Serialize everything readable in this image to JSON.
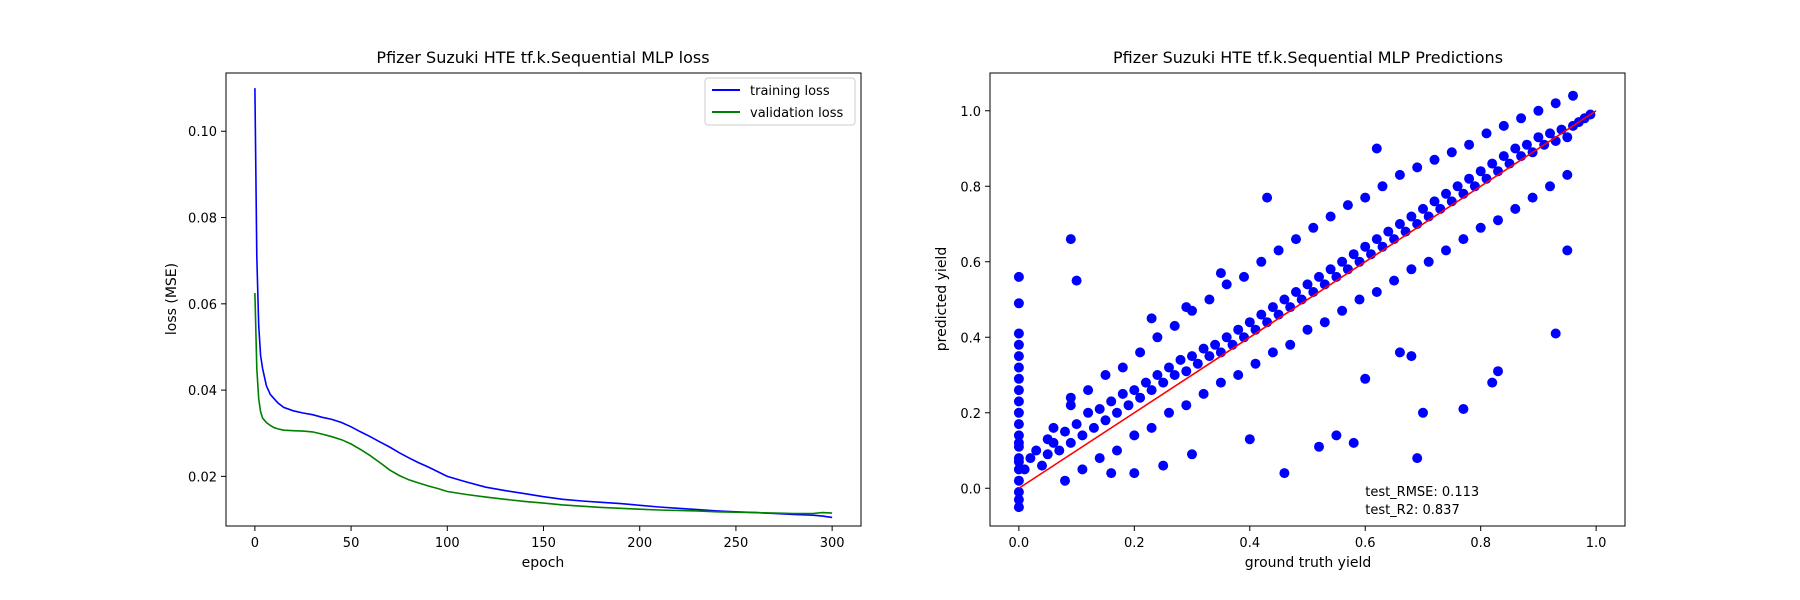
{
  "colors": {
    "training": "#0000ff",
    "validation": "#008000",
    "scatter": "#0000ff",
    "diagonal": "#ff0000"
  },
  "chart_data": [
    {
      "type": "line",
      "title": "Pfizer Suzuki HTE tf.k.Sequential MLP loss",
      "xlabel": "epoch",
      "ylabel": "loss (MSE)",
      "xlim": [
        -15,
        315
      ],
      "ylim": [
        0.0085,
        0.1135
      ],
      "xticks": [
        0,
        50,
        100,
        150,
        200,
        250,
        300
      ],
      "xtick_labels": [
        "0",
        "50",
        "100",
        "150",
        "200",
        "250",
        "300"
      ],
      "yticks": [
        0.02,
        0.04,
        0.06,
        0.08,
        0.1
      ],
      "ytick_labels": [
        "0.02",
        "0.04",
        "0.06",
        "0.08",
        "0.10"
      ],
      "legend_position": "top-right",
      "series": [
        {
          "name": "training loss",
          "x": [
            0,
            1,
            2,
            3,
            4,
            5,
            6,
            8,
            10,
            12,
            15,
            20,
            25,
            30,
            35,
            40,
            45,
            50,
            55,
            60,
            65,
            70,
            75,
            80,
            85,
            90,
            95,
            100,
            110,
            120,
            130,
            140,
            150,
            160,
            170,
            180,
            190,
            200,
            210,
            220,
            230,
            240,
            250,
            260,
            270,
            280,
            290,
            295,
            300
          ],
          "y": [
            0.11,
            0.071,
            0.055,
            0.048,
            0.045,
            0.043,
            0.041,
            0.039,
            0.038,
            0.037,
            0.036,
            0.0352,
            0.0347,
            0.0343,
            0.0337,
            0.0332,
            0.0325,
            0.0315,
            0.0303,
            0.0292,
            0.028,
            0.0268,
            0.0255,
            0.0243,
            0.0232,
            0.0222,
            0.0211,
            0.02,
            0.0187,
            0.0175,
            0.0167,
            0.016,
            0.0153,
            0.0147,
            0.0143,
            0.014,
            0.0137,
            0.0133,
            0.0129,
            0.0126,
            0.0123,
            0.012,
            0.0118,
            0.0116,
            0.0114,
            0.0112,
            0.011,
            0.0108,
            0.0105
          ]
        },
        {
          "name": "validation loss",
          "x": [
            0,
            1,
            2,
            3,
            4,
            5,
            6,
            8,
            10,
            12,
            15,
            20,
            25,
            30,
            35,
            40,
            45,
            50,
            55,
            60,
            65,
            70,
            75,
            80,
            85,
            90,
            95,
            100,
            110,
            120,
            130,
            140,
            150,
            160,
            170,
            180,
            190,
            200,
            210,
            220,
            230,
            240,
            250,
            260,
            270,
            280,
            290,
            295,
            300
          ],
          "y": [
            0.0625,
            0.045,
            0.038,
            0.035,
            0.0335,
            0.033,
            0.0325,
            0.0318,
            0.0313,
            0.031,
            0.0307,
            0.0306,
            0.0305,
            0.0303,
            0.0298,
            0.0292,
            0.0285,
            0.0275,
            0.0262,
            0.0248,
            0.0232,
            0.0215,
            0.0202,
            0.0192,
            0.0185,
            0.0178,
            0.0172,
            0.0165,
            0.0158,
            0.0152,
            0.0147,
            0.0142,
            0.0138,
            0.0134,
            0.0131,
            0.0128,
            0.0126,
            0.0124,
            0.0122,
            0.0121,
            0.012,
            0.0118,
            0.0117,
            0.0116,
            0.0115,
            0.0114,
            0.0114,
            0.0116,
            0.0115
          ]
        }
      ]
    },
    {
      "type": "scatter",
      "title": "Pfizer Suzuki HTE tf.k.Sequential MLP Predictions",
      "xlabel": "ground truth yield",
      "ylabel": "predicted yield",
      "xlim": [
        -0.05,
        1.05
      ],
      "ylim": [
        -0.1,
        1.1
      ],
      "xticks": [
        0.0,
        0.2,
        0.4,
        0.6,
        0.8,
        1.0
      ],
      "xtick_labels": [
        "0.0",
        "0.2",
        "0.4",
        "0.6",
        "0.8",
        "1.0"
      ],
      "yticks": [
        0.0,
        0.2,
        0.4,
        0.6,
        0.8,
        1.0
      ],
      "ytick_labels": [
        "0.0",
        "0.2",
        "0.4",
        "0.6",
        "0.8",
        "1.0"
      ],
      "diagonal": [
        [
          0,
          0
        ],
        [
          1,
          1
        ]
      ],
      "annotations": [
        "test_RMSE: 0.113",
        "test_R2: 0.837"
      ],
      "annotation_at": [
        0.6,
        -0.02
      ],
      "series": [
        {
          "x": [
            0.0,
            0.0,
            0.0,
            0.0,
            0.0,
            0.0,
            0.0,
            0.0,
            0.0,
            0.0,
            0.0,
            0.0,
            0.0,
            0.0,
            0.0,
            0.0,
            0.0,
            0.0,
            0.0,
            0.0,
            0.09,
            0.1,
            0.0,
            0.01,
            0.02,
            0.03,
            0.04,
            0.05,
            0.06,
            0.07,
            0.08,
            0.09,
            0.1,
            0.11,
            0.12,
            0.13,
            0.14,
            0.15,
            0.16,
            0.17,
            0.18,
            0.19,
            0.2,
            0.21,
            0.22,
            0.23,
            0.24,
            0.25,
            0.26,
            0.27,
            0.28,
            0.29,
            0.3,
            0.31,
            0.32,
            0.33,
            0.34,
            0.35,
            0.36,
            0.37,
            0.38,
            0.39,
            0.4,
            0.41,
            0.42,
            0.43,
            0.44,
            0.45,
            0.46,
            0.47,
            0.48,
            0.49,
            0.5,
            0.51,
            0.52,
            0.53,
            0.54,
            0.55,
            0.56,
            0.57,
            0.58,
            0.59,
            0.6,
            0.61,
            0.62,
            0.63,
            0.64,
            0.65,
            0.66,
            0.67,
            0.68,
            0.69,
            0.7,
            0.71,
            0.72,
            0.73,
            0.74,
            0.75,
            0.76,
            0.77,
            0.78,
            0.79,
            0.8,
            0.81,
            0.82,
            0.83,
            0.84,
            0.85,
            0.86,
            0.87,
            0.88,
            0.89,
            0.9,
            0.91,
            0.92,
            0.93,
            0.94,
            0.95,
            0.96,
            0.97,
            0.98,
            0.99,
            0.05,
            0.08,
            0.11,
            0.14,
            0.17,
            0.2,
            0.23,
            0.26,
            0.29,
            0.32,
            0.35,
            0.38,
            0.41,
            0.44,
            0.47,
            0.5,
            0.53,
            0.56,
            0.59,
            0.62,
            0.65,
            0.68,
            0.71,
            0.74,
            0.77,
            0.8,
            0.83,
            0.86,
            0.89,
            0.92,
            0.95,
            0.06,
            0.09,
            0.12,
            0.15,
            0.18,
            0.21,
            0.24,
            0.27,
            0.3,
            0.33,
            0.36,
            0.39,
            0.42,
            0.45,
            0.48,
            0.51,
            0.54,
            0.57,
            0.6,
            0.63,
            0.66,
            0.69,
            0.72,
            0.75,
            0.78,
            0.81,
            0.84,
            0.87,
            0.9,
            0.93,
            0.96,
            0.43,
            0.58,
            0.6,
            0.69,
            0.77,
            0.82,
            0.83,
            0.93,
            0.95,
            0.46,
            0.52,
            0.55,
            0.68,
            0.7,
            0.09,
            0.23,
            0.29,
            0.35,
            0.25,
            0.3,
            0.16,
            0.2,
            0.4,
            0.62,
            0.66
          ],
          "y": [
            0.56,
            0.49,
            0.41,
            0.38,
            0.35,
            0.32,
            0.29,
            0.26,
            0.23,
            0.2,
            0.17,
            0.14,
            0.11,
            0.08,
            0.05,
            0.02,
            -0.01,
            -0.03,
            -0.05,
            0.12,
            0.66,
            0.55,
            0.07,
            0.05,
            0.08,
            0.1,
            0.06,
            0.09,
            0.12,
            0.1,
            0.15,
            0.12,
            0.17,
            0.14,
            0.2,
            0.16,
            0.21,
            0.18,
            0.23,
            0.2,
            0.25,
            0.22,
            0.26,
            0.24,
            0.28,
            0.26,
            0.3,
            0.28,
            0.32,
            0.3,
            0.34,
            0.31,
            0.35,
            0.33,
            0.37,
            0.35,
            0.38,
            0.36,
            0.4,
            0.38,
            0.42,
            0.4,
            0.44,
            0.42,
            0.46,
            0.44,
            0.48,
            0.46,
            0.5,
            0.48,
            0.52,
            0.5,
            0.54,
            0.52,
            0.56,
            0.54,
            0.58,
            0.56,
            0.6,
            0.58,
            0.62,
            0.6,
            0.64,
            0.62,
            0.66,
            0.64,
            0.68,
            0.66,
            0.7,
            0.68,
            0.72,
            0.7,
            0.74,
            0.72,
            0.76,
            0.74,
            0.78,
            0.76,
            0.8,
            0.78,
            0.82,
            0.8,
            0.84,
            0.82,
            0.86,
            0.84,
            0.88,
            0.86,
            0.9,
            0.88,
            0.91,
            0.89,
            0.93,
            0.91,
            0.94,
            0.92,
            0.95,
            0.93,
            0.96,
            0.97,
            0.98,
            0.99,
            0.13,
            0.02,
            0.05,
            0.08,
            0.1,
            0.14,
            0.16,
            0.2,
            0.22,
            0.25,
            0.28,
            0.3,
            0.33,
            0.36,
            0.38,
            0.42,
            0.44,
            0.47,
            0.5,
            0.52,
            0.55,
            0.58,
            0.6,
            0.63,
            0.66,
            0.69,
            0.71,
            0.74,
            0.77,
            0.8,
            0.83,
            0.16,
            0.22,
            0.26,
            0.3,
            0.32,
            0.36,
            0.4,
            0.43,
            0.47,
            0.5,
            0.54,
            0.56,
            0.6,
            0.63,
            0.66,
            0.69,
            0.72,
            0.75,
            0.77,
            0.8,
            0.83,
            0.85,
            0.87,
            0.89,
            0.91,
            0.94,
            0.96,
            0.98,
            1.0,
            1.02,
            1.04,
            0.77,
            0.12,
            0.29,
            0.08,
            0.21,
            0.28,
            0.31,
            0.41,
            0.63,
            0.04,
            0.11,
            0.14,
            0.35,
            0.2,
            0.24,
            0.45,
            0.48,
            0.57,
            0.06,
            0.09,
            0.04,
            0.04,
            0.13,
            0.9,
            0.36
          ]
        }
      ]
    }
  ]
}
